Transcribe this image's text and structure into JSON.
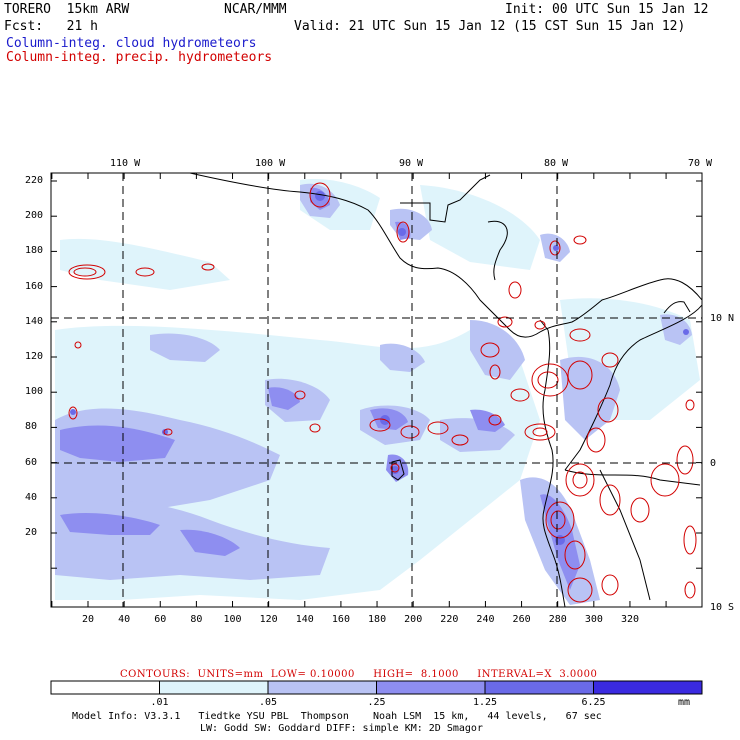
{
  "header": {
    "model": "TORERO  15km ARW",
    "org": "NCAR/MMM",
    "init": "Init: 00 UTC Sun 15 Jan 12",
    "fcst": "Fcst:   21 h",
    "valid": "Valid: 21 UTC Sun 15 Jan 12 (15 CST Sun 15 Jan 12)",
    "field_cloud": "Column-integ. cloud hydrometeors",
    "field_precip": "Column-integ. precip. hydrometeors",
    "cloud_color": "#1a1acc",
    "precip_color": "#d20000"
  },
  "map": {
    "lon_labels": [
      "110 W",
      "100 W",
      "90 W",
      "80 W",
      "70 W"
    ],
    "lat_labels": [
      "10 N",
      "0",
      "10 S"
    ],
    "y_ticks": [
      "220",
      "200",
      "180",
      "160",
      "140",
      "120",
      "100",
      "80",
      "60",
      "40",
      "20"
    ],
    "x_ticks": [
      "20",
      "40",
      "60",
      "80",
      "100",
      "120",
      "140",
      "160",
      "180",
      "200",
      "220",
      "240",
      "260",
      "280",
      "300",
      "320"
    ],
    "fill_colors": [
      "#ffffff",
      "#dff4fb",
      "#b9c3f4",
      "#8e8ef0",
      "#6a6ae8",
      "#3a2ae0"
    ]
  },
  "contours": {
    "label": "CONTOURS:  UNITS=mm  LOW= 0.10000     HIGH=  8.1000     INTERVAL=X  3.0000"
  },
  "colorbar": {
    "labels": [
      ".01",
      ".05",
      ".25",
      "1.25",
      "6.25"
    ],
    "units": "mm",
    "colors": [
      "#ffffff",
      "#dff4fb",
      "#b9c3f4",
      "#8e8ef0",
      "#6a6ae8",
      "#3a2ae0"
    ]
  },
  "model_info": {
    "line1": "Model Info: V3.3.1   Tiedtke YSU PBL  Thompson    Noah LSM  15 km,   44 levels,   67 sec",
    "line2": "LW: Godd SW: Goddard DIFF: simple KM: 2D Smagor"
  }
}
